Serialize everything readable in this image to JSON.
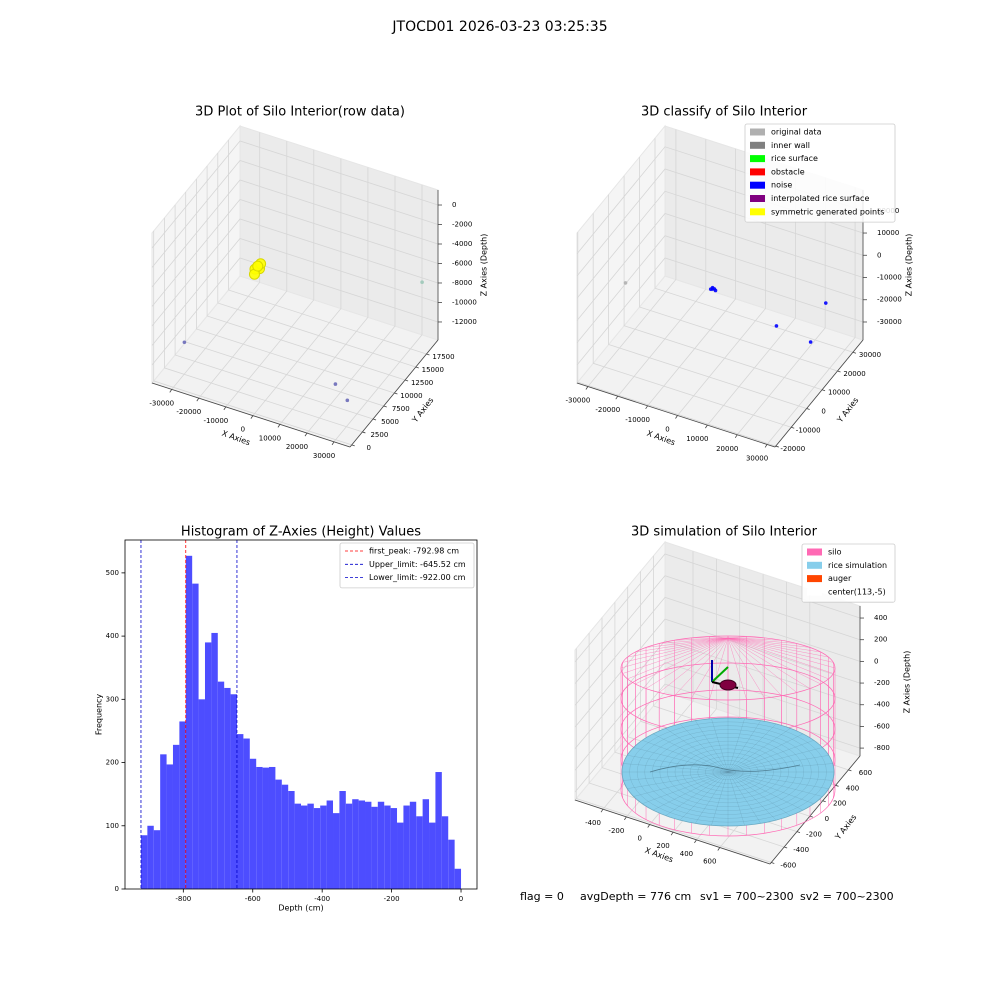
{
  "title": "JTOCD01 2026-03-23 03:25:35",
  "chart_data": [
    {
      "type": "scatter3d",
      "title": "3D Plot of Silo Interior(row data)",
      "xlabel": "X Axies",
      "ylabel": "Y Axies",
      "zlabel": "Z Axies (Depth)",
      "xlim": [
        -37300,
        35900
      ],
      "ylim": [
        -400,
        20200
      ],
      "zlim": [
        -13850,
        1540
      ],
      "xticks": [
        -30000,
        -20000,
        -10000,
        0,
        10000,
        20000,
        30000
      ],
      "yticks": [
        0,
        2500,
        5000,
        7500,
        10000,
        12500,
        15000,
        17500
      ],
      "zticks": [
        0,
        -2000,
        -4000,
        -6000,
        -8000,
        -10000,
        -12000
      ],
      "series": [
        {
          "color": "#ffff00",
          "x": [
            -14750,
            -13800,
            -15500,
            -14200,
            -14900,
            -14000
          ],
          "y": [
            9900,
            9900,
            9900,
            10400,
            9400,
            9600
          ],
          "z": [
            -5520,
            -5500,
            -5700,
            -5300,
            -5900,
            -5100
          ]
        },
        {
          "color": "#6a6ab8",
          "x": [
            -31740,
            20750,
            28500
          ],
          "y": [
            3660,
            5780,
            3660
          ],
          "z": [
            -11340,
            -12050,
            -11890
          ]
        },
        {
          "color": "#9cc8b8",
          "x": [
            33340
          ],
          "y": [
            18100
          ],
          "z": [
            -7030
          ]
        }
      ]
    },
    {
      "type": "scatter3d",
      "title": "3D classify of Silo Interior",
      "xlabel": "X Axies",
      "ylabel": "Y Axies",
      "zlabel": "Z Axies (Depth)",
      "xlim": [
        -33650,
        32650
      ],
      "ylim": [
        -20500,
        36500
      ],
      "zlim": [
        -38100,
        29350
      ],
      "xticks": [
        -30000,
        -20000,
        -10000,
        0,
        10000,
        20000,
        30000
      ],
      "yticks": [
        -20000,
        -10000,
        0,
        10000,
        20000,
        30000
      ],
      "zticks": [
        20000,
        10000,
        0,
        -10000,
        -20000,
        -30000
      ],
      "series": [
        {
          "name": "original data",
          "color": "#b0b0b0",
          "x": [
            -32130
          ],
          "y": [
            8000
          ],
          "z": [
            -16500
          ]
        },
        {
          "name": "inner wall",
          "color": "#808080",
          "x": [],
          "y": [],
          "z": []
        },
        {
          "name": "rice surface",
          "color": "#00ff00",
          "x": [],
          "y": [],
          "z": []
        },
        {
          "name": "obstacle",
          "color": "#ff0000",
          "x": [],
          "y": [],
          "z": []
        },
        {
          "name": "noise",
          "color": "#0000ff",
          "x": [
            -3020,
            -2500,
            -3500,
            -2000,
            -3200,
            26080,
            18400,
            26900
          ],
          "y": [
            8000,
            8200,
            7800,
            8000,
            8400,
            25100,
            8000,
            13700
          ],
          "z": [
            -6600,
            -6500,
            -6700,
            -6800,
            -6400,
            -14700,
            -13900,
            -22250
          ]
        },
        {
          "name": "interpolated rice surface",
          "color": "#800080",
          "x": [],
          "y": [],
          "z": []
        },
        {
          "name": "symmetric generated points",
          "color": "#ffff00",
          "x": [],
          "y": [],
          "z": []
        }
      ]
    },
    {
      "type": "histogram",
      "title": "Histogram of Z-Axies (Height) Values",
      "xlabel": "Depth (cm)",
      "ylabel": "Frequency",
      "color": "#4d4dff",
      "xlim": [
        -968,
        46
      ],
      "ylim": [
        0,
        552
      ],
      "xticks": [
        -800,
        -600,
        -400,
        -200,
        0
      ],
      "yticks": [
        0,
        100,
        200,
        300,
        400,
        500
      ],
      "bins": [
        -922,
        -903.56,
        -885.12,
        -866.68,
        -848.24,
        -829.8,
        -811.36,
        -792.92,
        -774.48,
        -756.04,
        -737.6,
        -719.16,
        -700.72,
        -682.28,
        -663.84,
        -645.4,
        -626.96,
        -608.52,
        -590.08,
        -571.64,
        -553.2,
        -534.76,
        -516.32,
        -497.88,
        -479.44,
        -461,
        -442.56,
        -424.12,
        -405.68,
        -387.24,
        -368.8,
        -350.36,
        -331.92,
        -313.48,
        -295.04,
        -276.6,
        -258.16,
        -239.72,
        -221.28,
        -202.84,
        -184.4,
        -165.96,
        -147.52,
        -129.08,
        -110.64,
        -92.2,
        -73.76,
        -55.32,
        -36.88,
        -18.44,
        0
      ],
      "counts": [
        85,
        100,
        93,
        213,
        197,
        228,
        265,
        527,
        483,
        300,
        390,
        405,
        328,
        318,
        308,
        245,
        238,
        206,
        193,
        192,
        193,
        173,
        165,
        155,
        135,
        132,
        135,
        128,
        132,
        140,
        120,
        155,
        135,
        142,
        140,
        138,
        130,
        138,
        132,
        128,
        105,
        132,
        138,
        115,
        142,
        105,
        185,
        115,
        78,
        32
      ],
      "lines": [
        {
          "name": "first_peak: -792.98 cm",
          "value": -792.98,
          "color": "#ff0000"
        },
        {
          "name": "Upper_limit: -645.52 cm",
          "value": -645.52,
          "color": "#0000cc"
        },
        {
          "name": "Lower_limit: -922.00 cm",
          "value": -922.0,
          "color": "#0000cc"
        }
      ]
    },
    {
      "type": "surface3d",
      "title": "3D simulation of Silo Interior",
      "xlabel": "X Axies",
      "ylabel": "Y Axies",
      "zlabel": "Z Axies (Depth)",
      "xlim": [
        -640,
        1030
      ],
      "ylim": [
        -620,
        780
      ],
      "zlim": [
        -873,
        511
      ],
      "xticks": [
        -400,
        -200,
        0,
        200,
        400,
        600
      ],
      "yticks": [
        -600,
        -400,
        -200,
        0,
        200,
        400,
        600
      ],
      "zticks": [
        400,
        200,
        0,
        -200,
        -400,
        -600,
        -800
      ],
      "legend": [
        {
          "name": "silo",
          "color": "#ff69b4"
        },
        {
          "name": "rice simulation",
          "color": "#87ceeb"
        },
        {
          "name": "auger",
          "color": "#ff4500"
        },
        {
          "name": "center(113,-5)",
          "color": "#ffffff"
        }
      ]
    }
  ],
  "status": [
    "flag = 0",
    "avgDepth = 776 cm",
    "sv1 = 700~2300",
    "sv2 = 700~2300"
  ]
}
